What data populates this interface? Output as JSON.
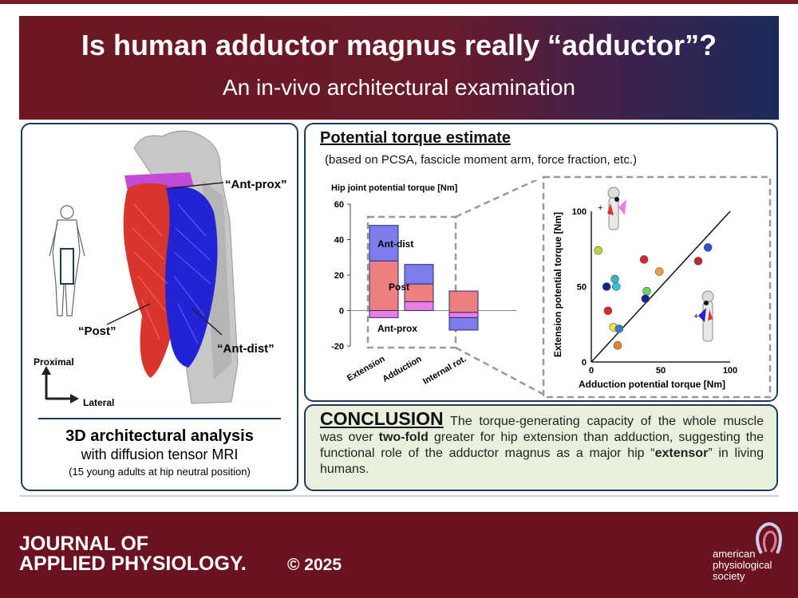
{
  "banner": {
    "title": "Is human adductor magnus really “adductor”?",
    "subtitle": "An in-vivo architectural examination"
  },
  "left_panel": {
    "labels": {
      "ant_prox": "“Ant-prox”",
      "post": "“Post”",
      "ant_dist": "“Ant-dist”"
    },
    "axes": {
      "proximal": "Proximal",
      "lateral": "Lateral"
    },
    "heading": "3D architectural analysis",
    "method": "with diffusion tensor MRI",
    "note": "(15 young adults at hip neutral position)"
  },
  "torque_panel": {
    "title": "Potential torque estimate",
    "subtitle": "(based on PCSA, fascicle moment arm, force fraction, etc.)"
  },
  "chart_data": [
    {
      "type": "bar",
      "stacked": true,
      "ylabel": "Hip joint potential torque [Nm]",
      "ylim": [
        -20,
        60
      ],
      "yticks": [
        -20,
        0,
        20,
        40,
        60
      ],
      "categories": [
        "Extension",
        "Adduction",
        "Internal rot."
      ],
      "series": [
        {
          "name": "Ant-prox",
          "color": "#ea7fe0",
          "values": [
            [
              -4,
              0
            ],
            [
              0,
              5
            ],
            [
              -4,
              -1
            ]
          ]
        },
        {
          "name": "Post",
          "color": "#ee7f7f",
          "values": [
            [
              0,
              28
            ],
            [
              5,
              15
            ],
            [
              -1,
              11
            ]
          ]
        },
        {
          "name": "Ant-dist",
          "color": "#7c7ceb",
          "values": [
            [
              28,
              48
            ],
            [
              15,
              26
            ],
            [
              -11,
              -4
            ]
          ]
        }
      ],
      "grid": false
    },
    {
      "type": "scatter",
      "xlabel": "Adduction potential torque [Nm]",
      "ylabel": "Extension potential torque [Nm]",
      "xlim": [
        0,
        100
      ],
      "ylim": [
        0,
        100
      ],
      "xticks": [
        0,
        50,
        100
      ],
      "yticks": [
        0,
        50,
        100
      ],
      "identity_line": true,
      "points": [
        {
          "x": 5,
          "y": 74,
          "color": "#b3dd3c"
        },
        {
          "x": 11,
          "y": 50,
          "color": "#1a238c"
        },
        {
          "x": 12,
          "y": 34,
          "color": "#d8282e"
        },
        {
          "x": 17,
          "y": 55,
          "color": "#3ab0c9"
        },
        {
          "x": 18,
          "y": 50,
          "color": "#38c0d8"
        },
        {
          "x": 16,
          "y": 23,
          "color": "#f0e440"
        },
        {
          "x": 19,
          "y": 11,
          "color": "#e88330"
        },
        {
          "x": 20,
          "y": 22,
          "color": "#3a78c9"
        },
        {
          "x": 38,
          "y": 68,
          "color": "#d8282e"
        },
        {
          "x": 40,
          "y": 47,
          "color": "#68d468"
        },
        {
          "x": 39,
          "y": 42,
          "color": "#1a238c"
        },
        {
          "x": 49,
          "y": 60,
          "color": "#f0a040"
        },
        {
          "x": 77,
          "y": 67,
          "color": "#c0282e"
        },
        {
          "x": 84,
          "y": 76,
          "color": "#3050d0"
        }
      ]
    }
  ],
  "conclusion": {
    "heading": "CONCLUSION",
    "text_a": " The torque-generating capacity of the whole muscle was over ",
    "bold_a": "two-fold",
    "text_b": " greater for hip extension than adduction, suggesting the functional role of the adductor magnus as a major hip “",
    "bold_b": "extensor",
    "text_c": "” in living humans."
  },
  "footer": {
    "journal_line1": "JOURNAL OF",
    "journal_line2": "APPLIED PHYSIOLOGY.",
    "copyright": "© 2025",
    "society_line1": "american",
    "society_line2": "physiological",
    "society_line3": "society"
  },
  "colors": {
    "brand": "#6a1220",
    "panel_border": "#1d3a5a",
    "post_muscle": "#d9342e",
    "ant_dist_muscle": "#2323d6",
    "ant_prox_muscle": "#c44ad8"
  }
}
